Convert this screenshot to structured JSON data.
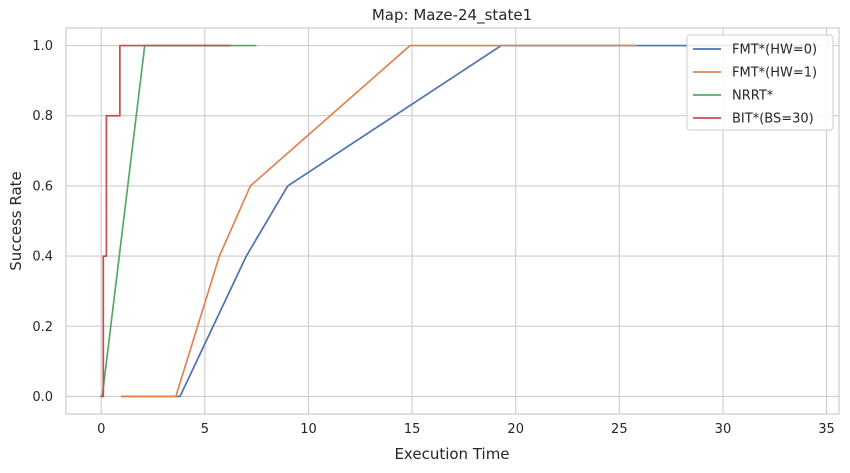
{
  "chart_data": {
    "type": "line",
    "title": "Map: Maze-24_state1",
    "xlabel": "Execution Time",
    "ylabel": "Success Rate",
    "xlim": [
      -1.7,
      35.6
    ],
    "ylim": [
      -0.05,
      1.05
    ],
    "xticks": [
      0,
      5,
      10,
      15,
      20,
      25,
      30,
      35
    ],
    "yticks": [
      0.0,
      0.2,
      0.4,
      0.6,
      0.8,
      1.0
    ],
    "xtick_labels": [
      "0",
      "5",
      "10",
      "15",
      "20",
      "25",
      "30",
      "35"
    ],
    "ytick_labels": [
      "0.0",
      "0.2",
      "0.4",
      "0.6",
      "0.8",
      "1.0"
    ],
    "grid": true,
    "legend_position": "top-right",
    "series": [
      {
        "name": "FMT*(HW=0)",
        "color": "#4c72b0",
        "step": false,
        "x": [
          1.0,
          3.8,
          7.0,
          9.0,
          19.3,
          34.5
        ],
        "y": [
          0.0,
          0.0,
          0.4,
          0.6,
          1.0,
          1.0
        ]
      },
      {
        "name": "FMT*(HW=1)",
        "color": "#dd8452",
        "step": false,
        "x": [
          1.0,
          3.6,
          5.7,
          7.2,
          14.9,
          25.8
        ],
        "y": [
          0.0,
          0.0,
          0.4,
          0.6,
          1.0,
          1.0
        ]
      },
      {
        "name": "NRRT*",
        "color": "#55a868",
        "step": false,
        "x": [
          0.05,
          2.1,
          7.45
        ],
        "y": [
          0.0,
          1.0,
          1.0
        ]
      },
      {
        "name": "BIT*(BS=30)",
        "color": "#c44e52",
        "step": true,
        "x": [
          0.0,
          0.1,
          0.25,
          0.9,
          6.2
        ],
        "y": [
          0.0,
          0.4,
          0.8,
          1.0,
          1.0
        ]
      }
    ]
  }
}
